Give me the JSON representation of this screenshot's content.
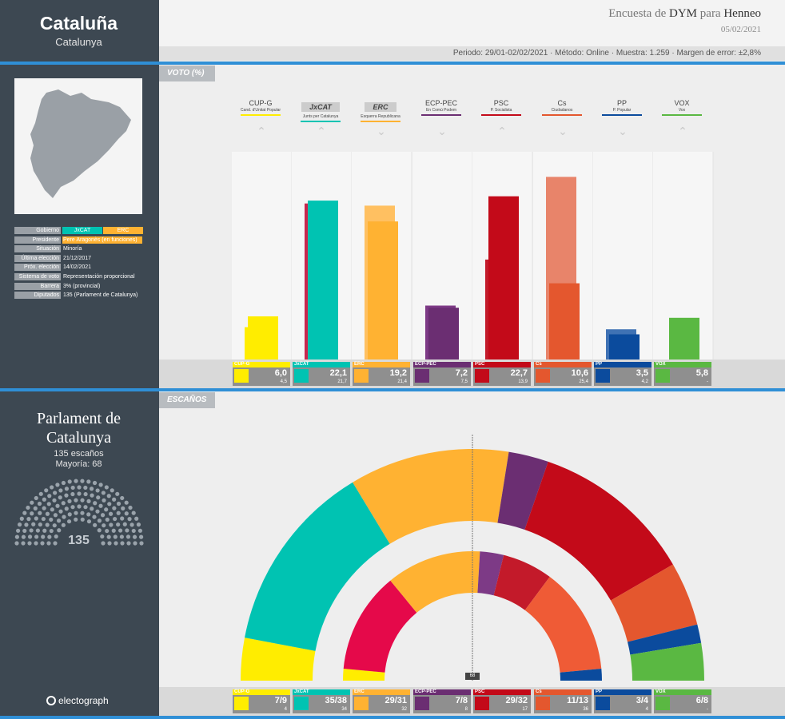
{
  "region": {
    "title": "Cataluña",
    "subtitle": "Catalunya"
  },
  "header": {
    "poll_prefix": "Encuesta de",
    "pollster": "DYM",
    "para": "para",
    "media": "Henneo",
    "date": "05/02/2021",
    "details": "Periodo: 29/01-02/02/2021 · Método: Online · Muestra: 1.259 · Margen de error: ±2,8%"
  },
  "info": {
    "rows": [
      {
        "label": "Gobierno",
        "value": ""
      },
      {
        "label": "Presidente",
        "value": "Pere Aragonès  (en funciones)"
      },
      {
        "label": "Situación",
        "value": "Minoría"
      },
      {
        "label": "Última elección",
        "value": "21/12/2017"
      },
      {
        "label": "Próx. elección",
        "value": "14/02/2021"
      },
      {
        "label": "Sistema de voto",
        "value": "Representación proporcional"
      },
      {
        "label": "Barrera",
        "value": "3% (provincial)"
      },
      {
        "label": "Diputados",
        "value": "135 (Parlament  de Catalunya)"
      }
    ],
    "gov_parties": [
      "JxCAT",
      "ERC"
    ]
  },
  "parliament": {
    "name": "Parlament de Catalunya",
    "seats_label": "135 escaños",
    "majority_label": "Mayoría: 68",
    "total": "135",
    "majority_marker": "68"
  },
  "brand": "electograph",
  "sections": {
    "vote": "VOTO (%)",
    "seats": "ESCAÑOS"
  },
  "colors": {
    "accent": "#2f8fd6",
    "sidebar": "#3d4852"
  },
  "chart_data": [
    {
      "type": "bar",
      "title": "VOTO (%)",
      "categories": [
        "CUP-G",
        "JxCAT",
        "ERC",
        "ECP-PEC",
        "PSC",
        "Cs",
        "PP",
        "VOX"
      ],
      "full_names": [
        "Cand. d'Unitat Popular",
        "Junts per Catalunya",
        "Esquerra Republicana",
        "En Comú Podem",
        "P. Socialista",
        "Ciudadanos",
        "P. Popular",
        "Vox"
      ],
      "trend": [
        "up",
        "up",
        "down",
        "down",
        "up",
        "down",
        "down",
        "up"
      ],
      "series": [
        {
          "name": "Encuesta",
          "values": [
            6.0,
            22.1,
            19.2,
            7.2,
            22.7,
            10.6,
            3.5,
            5.8
          ],
          "labels": [
            "6,0",
            "22,1",
            "19,2",
            "7,2",
            "22,7",
            "10,6",
            "3,5",
            "5,8"
          ]
        },
        {
          "name": "Elección 2017",
          "values": [
            4.5,
            21.7,
            21.4,
            7.5,
            13.9,
            25.4,
            4.2,
            0
          ],
          "labels": [
            "4,5",
            "21,7",
            "21,4",
            "7,5",
            "13,9",
            "25,4",
            "4,2",
            "-"
          ]
        }
      ],
      "colors": [
        "#ffed00",
        "#00c3b2",
        "#ffb232",
        "#6b2e72",
        "#c30a19",
        "#e4572e",
        "#0b4b9d",
        "#5ab842"
      ],
      "prev_colors": [
        "#ffed00",
        "#c9264d",
        "#ffc061",
        "#7d3a86",
        "#c31a2a",
        "#e8846a",
        "#3f72b4",
        "#5ab842"
      ],
      "ylim": [
        0,
        30
      ]
    },
    {
      "type": "hemicycle",
      "title": "ESCAÑOS",
      "categories": [
        "CUP-G",
        "JxCAT",
        "ERC",
        "ECP-PEC",
        "PSC",
        "Cs",
        "PP",
        "VOX"
      ],
      "seat_ranges": [
        "7/9",
        "35/38",
        "29/31",
        "7/8",
        "29/32",
        "11/13",
        "3/4",
        "6/8"
      ],
      "seats_2017": [
        "4",
        "34",
        "32",
        "8",
        "17",
        "36",
        "4",
        "-"
      ],
      "outer_seats": [
        8,
        36,
        30,
        7.5,
        30.5,
        12,
        3.5,
        7
      ],
      "inner_2017": [
        4,
        34,
        32,
        8,
        17,
        36,
        4,
        0
      ],
      "inner_colors": [
        "#ffed00",
        "#e5094a",
        "#ffb232",
        "#7d3a86",
        "#c31a2a",
        "#ef5b36",
        "#0b4b9d",
        "#5ab842"
      ],
      "total": 135,
      "majority": 68
    }
  ]
}
